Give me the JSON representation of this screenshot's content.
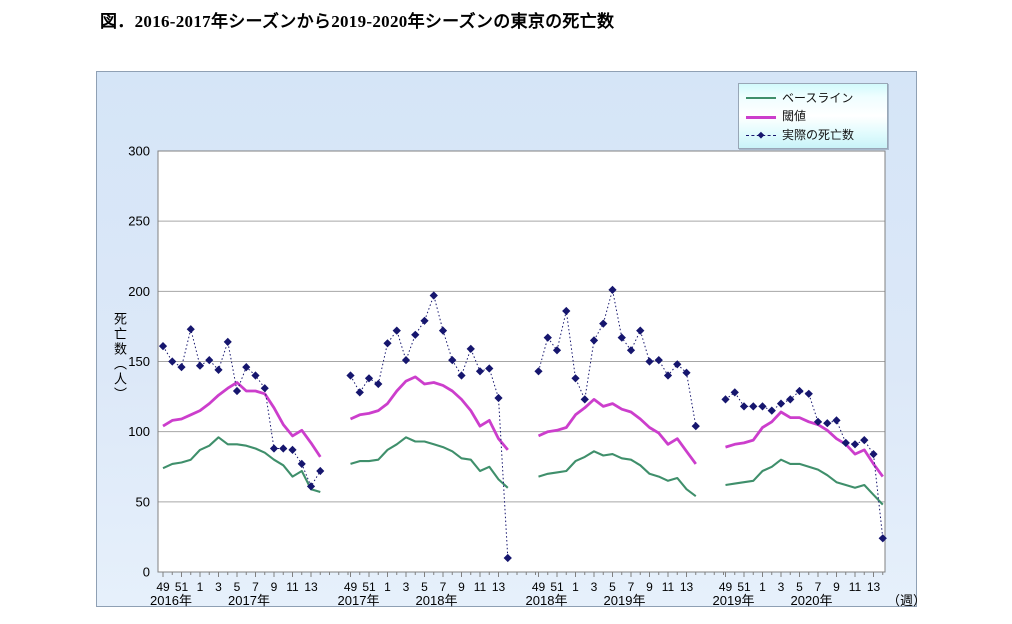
{
  "page": {
    "title": "図．2016-2017年シーズンから2019-2020年シーズンの東京の死亡数"
  },
  "chart_data": {
    "type": "line",
    "title": "図．2016-2017年シーズンから2019-2020年シーズンの東京の死亡数",
    "ylabel": "死亡数（人）",
    "xlabel_unit": "（週）",
    "ylim": [
      0,
      300
    ],
    "yticks": [
      0,
      50,
      100,
      150,
      200,
      250,
      300
    ],
    "grid": true,
    "legend_position": "top-right",
    "weeks": [
      49,
      50,
      51,
      52,
      1,
      2,
      3,
      4,
      5,
      6,
      7,
      8,
      9,
      10,
      11,
      12,
      13,
      14
    ],
    "series_meta": [
      {
        "name": "ベースライン",
        "key": "baseline",
        "color": "#3f8f6b",
        "style": "solid"
      },
      {
        "name": "閾値",
        "key": "threshold",
        "color": "#cc3ecc",
        "style": "solid"
      },
      {
        "name": "実際の死亡数",
        "key": "actual",
        "color": "#16166e",
        "style": "dotted-diamond"
      }
    ],
    "colors": {
      "plot_bg": "#ffffff",
      "grid": "#a6a6a6",
      "axis": "#808080",
      "text": "#000000"
    },
    "seasons": [
      {
        "start_year_label": "2016年",
        "end_year_label": "2017年",
        "baseline": [
          74,
          77,
          78,
          80,
          87,
          90,
          96,
          91,
          91,
          90,
          88,
          85,
          80,
          76,
          68,
          72,
          59,
          57
        ],
        "threshold": [
          104,
          108,
          109,
          112,
          115,
          120,
          126,
          131,
          135,
          129,
          129,
          127,
          117,
          105,
          97,
          101,
          92,
          82
        ],
        "actual": [
          161,
          150,
          146,
          173,
          147,
          151,
          144,
          164,
          129,
          146,
          140,
          131,
          88,
          88,
          87,
          77,
          61,
          72
        ]
      },
      {
        "start_year_label": "2017年",
        "end_year_label": "2018年",
        "baseline": [
          77,
          79,
          79,
          80,
          87,
          91,
          96,
          93,
          93,
          91,
          89,
          86,
          81,
          80,
          72,
          75,
          66,
          60
        ],
        "threshold": [
          109,
          112,
          113,
          115,
          120,
          129,
          136,
          139,
          134,
          135,
          133,
          129,
          123,
          115,
          104,
          108,
          95,
          87
        ],
        "actual": [
          140,
          128,
          138,
          134,
          163,
          172,
          151,
          169,
          179,
          197,
          172,
          151,
          140,
          159,
          143,
          145,
          124,
          10
        ]
      },
      {
        "start_year_label": "2018年",
        "end_year_label": "2019年",
        "baseline": [
          68,
          70,
          71,
          72,
          79,
          82,
          86,
          83,
          84,
          81,
          80,
          76,
          70,
          68,
          65,
          67,
          59,
          54
        ],
        "threshold": [
          97,
          100,
          101,
          103,
          112,
          117,
          123,
          118,
          120,
          116,
          114,
          109,
          103,
          99,
          91,
          95,
          86,
          77
        ],
        "actual": [
          143,
          167,
          158,
          186,
          138,
          123,
          165,
          177,
          201,
          167,
          158,
          172,
          150,
          151,
          140,
          148,
          142,
          104
        ]
      },
      {
        "start_year_label": "2019年",
        "end_year_label": "2020年",
        "baseline": [
          62,
          63,
          64,
          65,
          72,
          75,
          80,
          77,
          77,
          75,
          73,
          69,
          64,
          62,
          60,
          62,
          55,
          48
        ],
        "threshold": [
          89,
          91,
          92,
          94,
          103,
          107,
          114,
          110,
          110,
          107,
          105,
          101,
          95,
          91,
          84,
          87,
          77,
          68
        ],
        "actual": [
          123,
          128,
          118,
          118,
          118,
          115,
          120,
          123,
          129,
          127,
          107,
          106,
          108,
          92,
          91,
          94,
          84,
          24
        ]
      }
    ]
  }
}
